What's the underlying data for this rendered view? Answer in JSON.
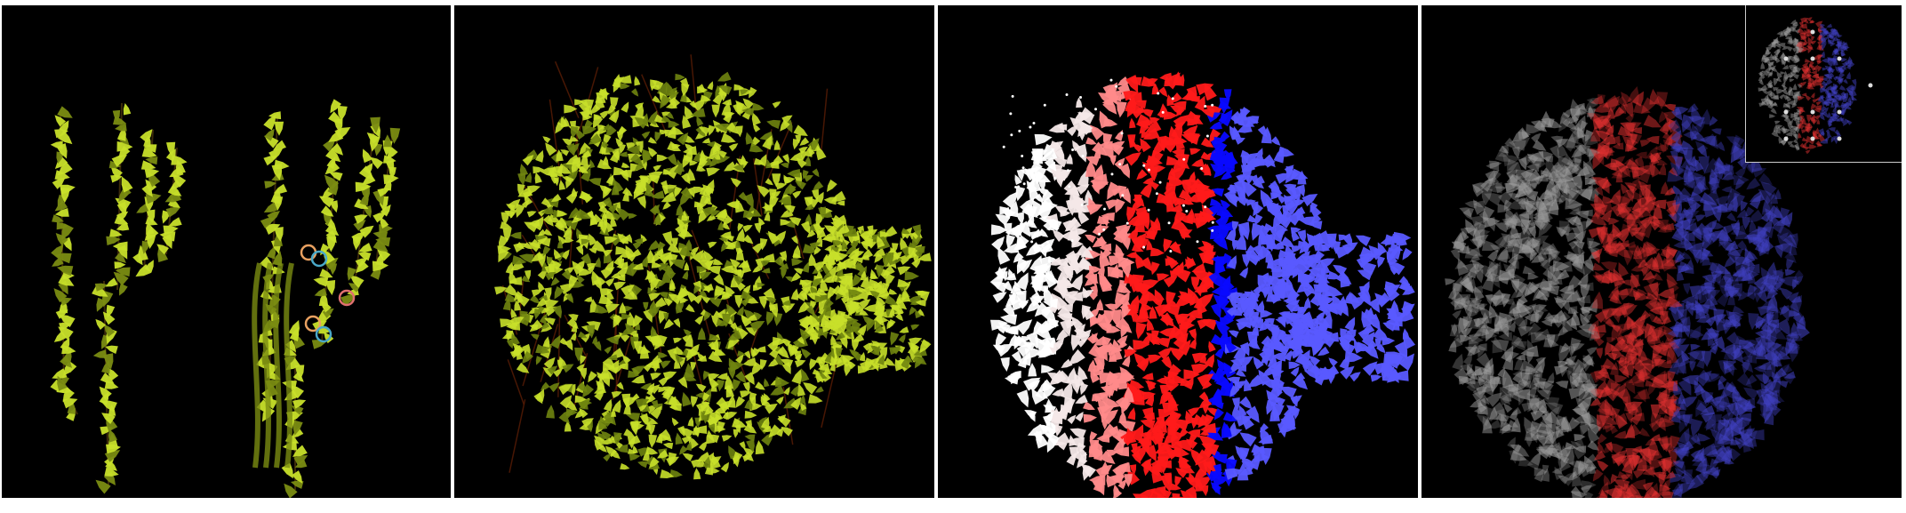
{
  "panels": [
    {
      "id": "panel-1",
      "content": "two-saguaro-cactus-plants",
      "palette": [
        "#c8e02a",
        "#7a8c12",
        "#3b2a0a"
      ]
    },
    {
      "id": "panel-2",
      "content": "dense-vine-foliage",
      "palette": [
        "#c8e02a",
        "#6f8410",
        "#5a1d05"
      ]
    },
    {
      "id": "panel-3",
      "content": "foliage-color-segmentation",
      "palette": [
        "#ff1a1a",
        "#ff8a8a",
        "#f4e8e8",
        "#ffffff",
        "#5a5aff",
        "#0a0aff"
      ]
    },
    {
      "id": "panel-4",
      "content": "soft-segmentation-overlay",
      "palette": [
        "#e03030",
        "#4040c0",
        "#9a9a9a"
      ],
      "inset": {
        "content": "control-points-overview",
        "point_color": "#dddddd"
      }
    }
  ]
}
